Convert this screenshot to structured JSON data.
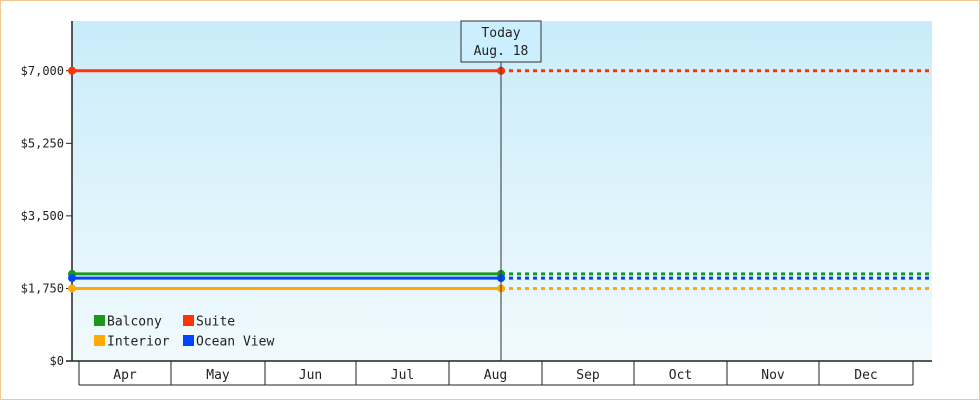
{
  "chart_data": {
    "type": "line",
    "categories": [
      "Apr",
      "May",
      "Jun",
      "Jul",
      "Aug",
      "Sep",
      "Oct",
      "Nov",
      "Dec"
    ],
    "yticks": [
      "$0",
      "$1,750",
      "$3,500",
      "$5,250",
      "$7,000"
    ],
    "ylim": [
      0,
      8200
    ],
    "marker": {
      "line1": "Today",
      "line2": "Aug. 18"
    },
    "series": [
      {
        "name": "Suite",
        "color": "#ff3300",
        "start": 7000,
        "end": 7000
      },
      {
        "name": "Balcony",
        "color": "#1a9a1a",
        "start": 2100,
        "end": 2100
      },
      {
        "name": "Ocean View",
        "color": "#0044ff",
        "start": 2000,
        "end": 2000
      },
      {
        "name": "Interior",
        "color": "#ffaa00",
        "start": 1750,
        "end": 1750
      }
    ],
    "legend": {
      "placement": "bottom-left",
      "rows": [
        [
          {
            "label": "Balcony",
            "series": 1
          },
          {
            "label": "Suite",
            "series": 0
          }
        ],
        [
          {
            "label": "Interior",
            "series": 3
          },
          {
            "label": "Ocean View",
            "series": 2
          }
        ]
      ]
    },
    "grid": false
  }
}
